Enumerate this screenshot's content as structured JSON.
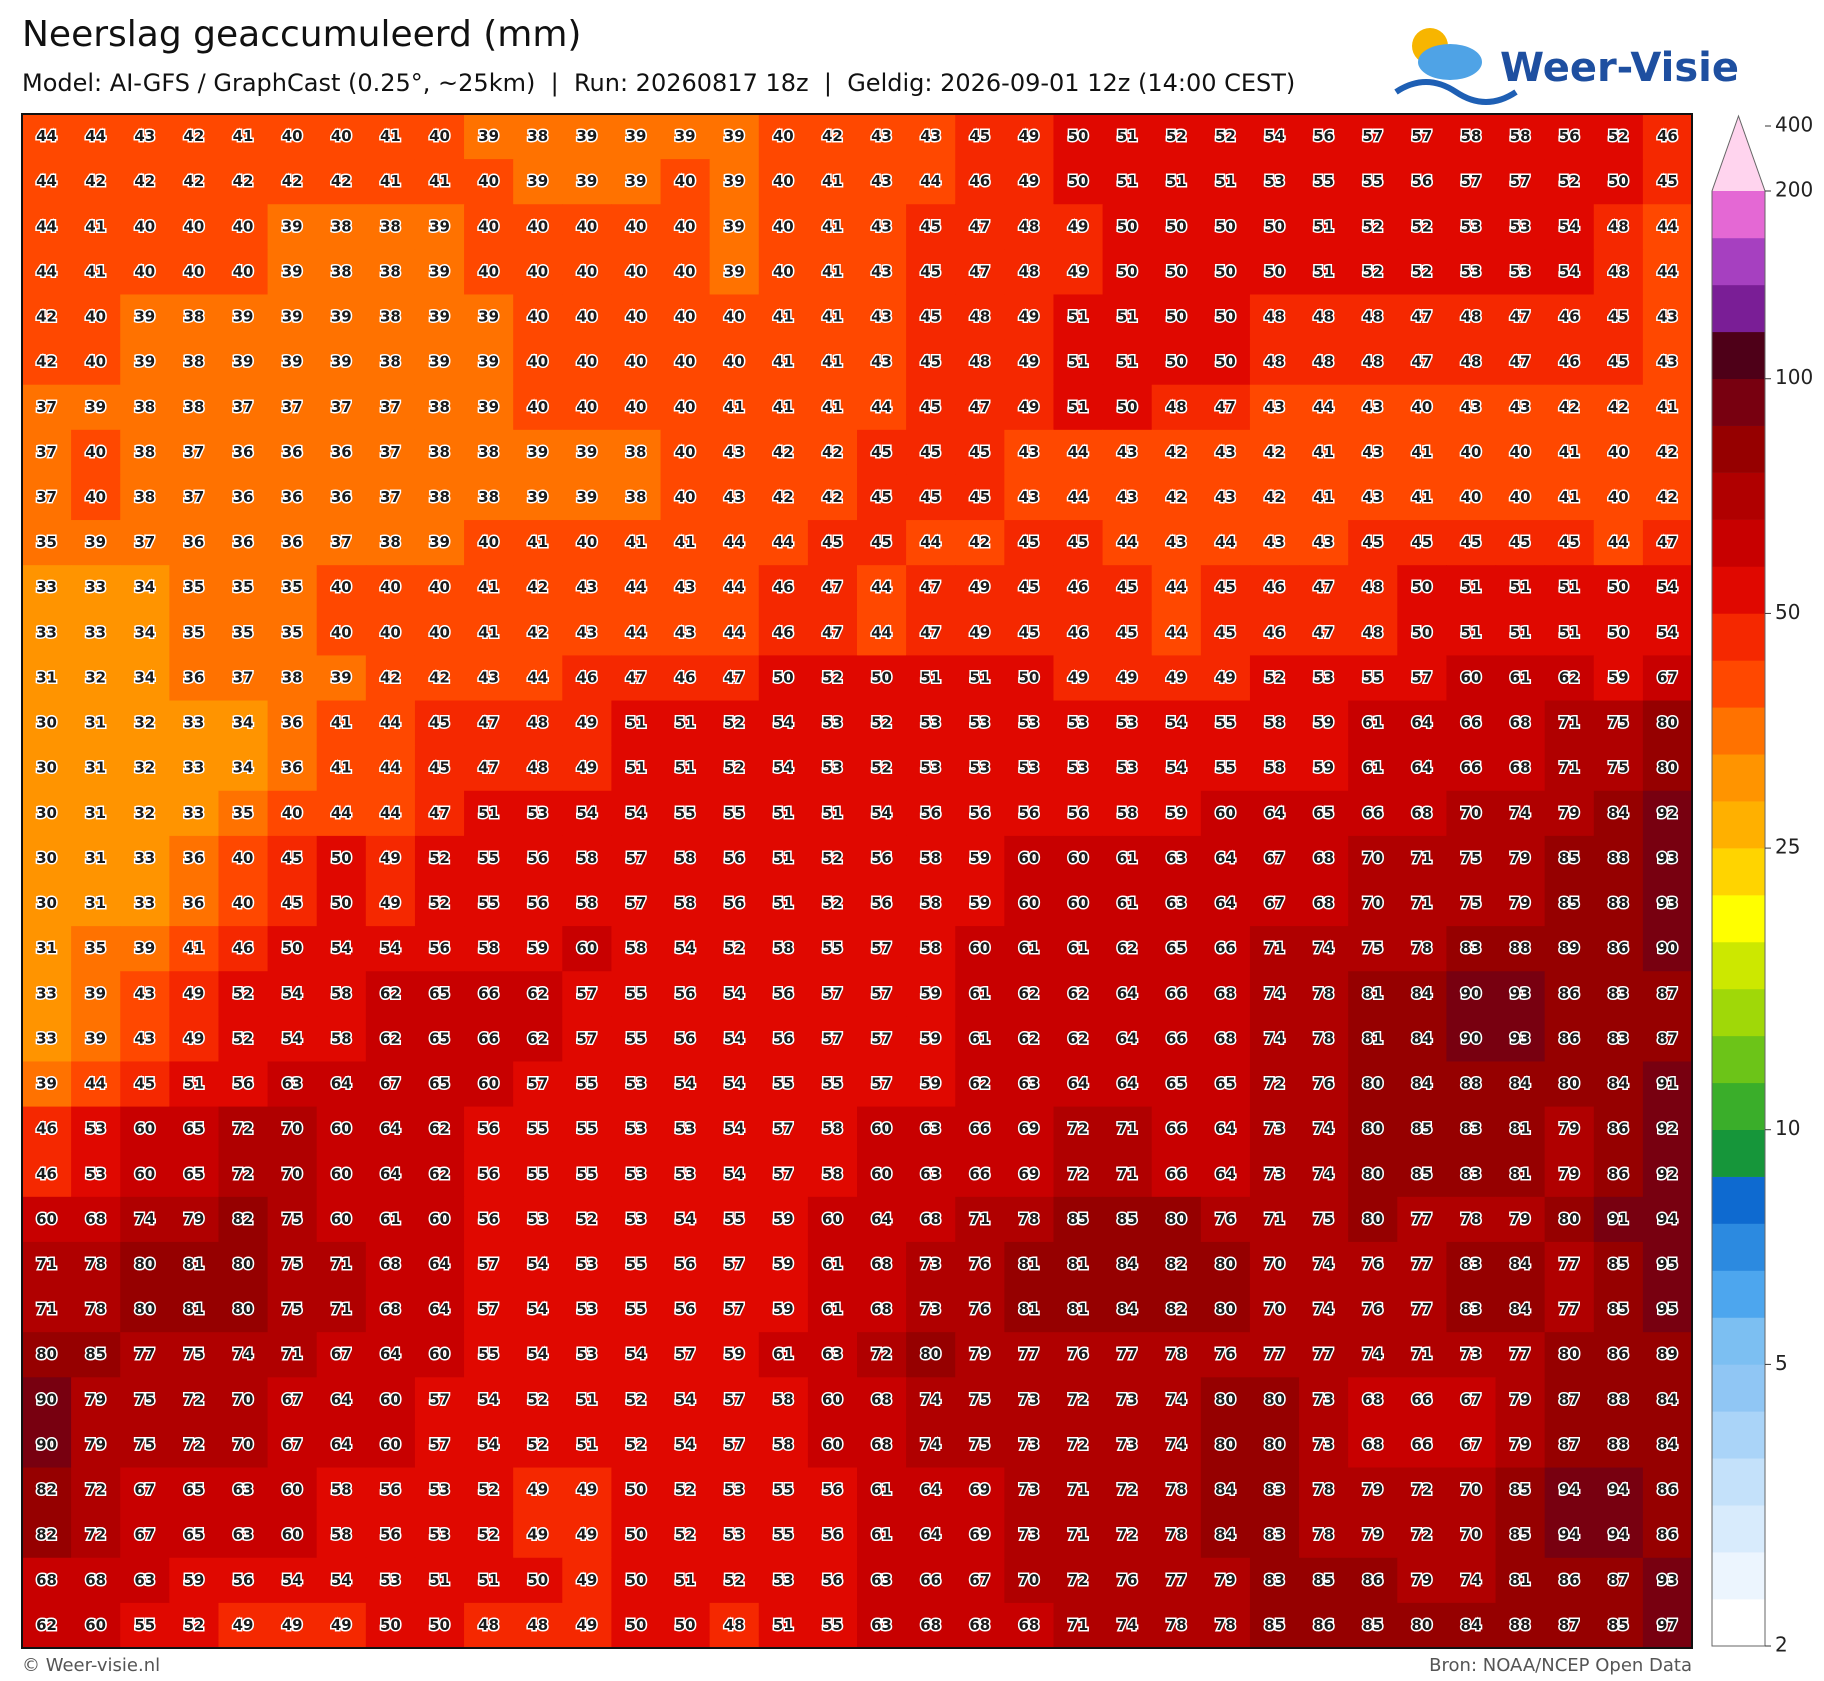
{
  "header": {
    "title": "Neerslag geaccumuleerd (mm)",
    "subtitle": "Model: AI-GFS / GraphCast (0.25°, ~25km)  |  Run: 20260817 18z  |  Geldig: 2026-09-01 12z (14:00 CEST)",
    "logo": "Weer-Visie"
  },
  "grid": {
    "rows": [
      [
        44,
        44,
        43,
        42,
        41,
        40,
        40,
        41,
        40,
        39,
        38,
        39,
        39,
        39,
        39,
        40,
        42,
        43,
        43,
        45,
        49,
        50,
        51,
        52,
        52,
        54,
        56,
        57,
        57,
        58,
        58,
        56,
        52,
        46
      ],
      [
        44,
        42,
        42,
        42,
        42,
        42,
        42,
        41,
        41,
        40,
        39,
        39,
        39,
        40,
        39,
        40,
        41,
        43,
        44,
        46,
        49,
        50,
        51,
        51,
        51,
        53,
        55,
        55,
        56,
        57,
        57,
        52,
        50,
        45
      ],
      [
        44,
        41,
        40,
        40,
        40,
        39,
        38,
        38,
        39,
        40,
        40,
        40,
        40,
        40,
        39,
        40,
        41,
        43,
        45,
        47,
        48,
        49,
        50,
        50,
        50,
        50,
        51,
        52,
        52,
        53,
        53,
        54,
        48,
        44
      ],
      [
        44,
        41,
        40,
        40,
        40,
        39,
        38,
        38,
        39,
        40,
        40,
        40,
        40,
        40,
        39,
        40,
        41,
        43,
        45,
        47,
        48,
        49,
        50,
        50,
        50,
        50,
        51,
        52,
        52,
        53,
        53,
        54,
        48,
        44
      ],
      [
        42,
        40,
        39,
        38,
        39,
        39,
        39,
        38,
        39,
        39,
        40,
        40,
        40,
        40,
        40,
        41,
        41,
        43,
        45,
        48,
        49,
        51,
        51,
        50,
        50,
        48,
        48,
        48,
        47,
        48,
        47,
        46,
        45,
        43
      ],
      [
        42,
        40,
        39,
        38,
        39,
        39,
        39,
        38,
        39,
        39,
        40,
        40,
        40,
        40,
        40,
        41,
        41,
        43,
        45,
        48,
        49,
        51,
        51,
        50,
        50,
        48,
        48,
        48,
        47,
        48,
        47,
        46,
        45,
        43
      ],
      [
        37,
        39,
        38,
        38,
        37,
        37,
        37,
        37,
        38,
        39,
        40,
        40,
        40,
        40,
        41,
        41,
        41,
        44,
        45,
        47,
        49,
        51,
        50,
        48,
        47,
        43,
        44,
        43,
        40,
        43,
        43,
        42,
        42,
        41
      ],
      [
        37,
        40,
        38,
        37,
        36,
        36,
        36,
        37,
        38,
        38,
        39,
        39,
        38,
        40,
        43,
        42,
        42,
        45,
        45,
        45,
        43,
        44,
        43,
        42,
        43,
        42,
        41,
        43,
        41,
        40,
        40,
        41,
        40,
        42
      ],
      [
        37,
        40,
        38,
        37,
        36,
        36,
        36,
        37,
        38,
        38,
        39,
        39,
        38,
        40,
        43,
        42,
        42,
        45,
        45,
        45,
        43,
        44,
        43,
        42,
        43,
        42,
        41,
        43,
        41,
        40,
        40,
        41,
        40,
        42
      ],
      [
        35,
        39,
        37,
        36,
        36,
        36,
        37,
        38,
        39,
        40,
        41,
        40,
        41,
        41,
        44,
        44,
        45,
        45,
        44,
        42,
        45,
        45,
        44,
        43,
        44,
        43,
        43,
        45,
        45,
        45,
        45,
        45,
        44,
        47
      ],
      [
        33,
        33,
        34,
        35,
        35,
        35,
        40,
        40,
        40,
        41,
        42,
        43,
        44,
        43,
        44,
        46,
        47,
        44,
        47,
        49,
        45,
        46,
        45,
        44,
        45,
        46,
        47,
        48,
        50,
        51,
        51,
        51,
        50,
        54
      ],
      [
        33,
        33,
        34,
        35,
        35,
        35,
        40,
        40,
        40,
        41,
        42,
        43,
        44,
        43,
        44,
        46,
        47,
        44,
        47,
        49,
        45,
        46,
        45,
        44,
        45,
        46,
        47,
        48,
        50,
        51,
        51,
        51,
        50,
        54
      ],
      [
        31,
        32,
        34,
        36,
        37,
        38,
        39,
        42,
        42,
        43,
        44,
        46,
        47,
        46,
        47,
        50,
        52,
        50,
        51,
        51,
        50,
        49,
        49,
        49,
        49,
        52,
        53,
        55,
        57,
        60,
        61,
        62,
        59,
        67
      ],
      [
        30,
        31,
        32,
        33,
        34,
        36,
        41,
        44,
        45,
        47,
        48,
        49,
        51,
        51,
        52,
        54,
        53,
        52,
        53,
        53,
        53,
        53,
        53,
        54,
        55,
        58,
        59,
        61,
        64,
        66,
        68,
        71,
        75,
        80
      ],
      [
        30,
        31,
        32,
        33,
        34,
        36,
        41,
        44,
        45,
        47,
        48,
        49,
        51,
        51,
        52,
        54,
        53,
        52,
        53,
        53,
        53,
        53,
        53,
        54,
        55,
        58,
        59,
        61,
        64,
        66,
        68,
        71,
        75,
        80
      ],
      [
        30,
        31,
        32,
        33,
        35,
        40,
        44,
        44,
        47,
        51,
        53,
        54,
        54,
        55,
        55,
        51,
        51,
        54,
        56,
        56,
        56,
        56,
        58,
        59,
        60,
        64,
        65,
        66,
        68,
        70,
        74,
        79,
        84,
        92
      ],
      [
        30,
        31,
        33,
        36,
        40,
        45,
        50,
        49,
        52,
        55,
        56,
        58,
        57,
        58,
        56,
        51,
        52,
        56,
        58,
        59,
        60,
        60,
        61,
        63,
        64,
        67,
        68,
        70,
        71,
        75,
        79,
        85,
        88,
        93
      ],
      [
        30,
        31,
        33,
        36,
        40,
        45,
        50,
        49,
        52,
        55,
        56,
        58,
        57,
        58,
        56,
        51,
        52,
        56,
        58,
        59,
        60,
        60,
        61,
        63,
        64,
        67,
        68,
        70,
        71,
        75,
        79,
        85,
        88,
        93
      ],
      [
        31,
        35,
        39,
        41,
        46,
        50,
        54,
        54,
        56,
        58,
        59,
        60,
        58,
        54,
        52,
        58,
        55,
        57,
        58,
        60,
        61,
        61,
        62,
        65,
        66,
        71,
        74,
        75,
        78,
        83,
        88,
        89,
        86,
        90
      ],
      [
        33,
        39,
        43,
        49,
        52,
        54,
        58,
        62,
        65,
        66,
        62,
        57,
        55,
        56,
        54,
        56,
        57,
        57,
        59,
        61,
        62,
        62,
        64,
        66,
        68,
        74,
        78,
        81,
        84,
        90,
        93,
        86,
        83,
        87
      ],
      [
        33,
        39,
        43,
        49,
        52,
        54,
        58,
        62,
        65,
        66,
        62,
        57,
        55,
        56,
        54,
        56,
        57,
        57,
        59,
        61,
        62,
        62,
        64,
        66,
        68,
        74,
        78,
        81,
        84,
        90,
        93,
        86,
        83,
        87
      ],
      [
        39,
        44,
        45,
        51,
        56,
        63,
        64,
        67,
        65,
        60,
        57,
        55,
        53,
        54,
        54,
        55,
        55,
        57,
        59,
        62,
        63,
        64,
        64,
        65,
        65,
        72,
        76,
        80,
        84,
        88,
        84,
        80,
        84,
        91
      ],
      [
        46,
        53,
        60,
        65,
        72,
        70,
        60,
        64,
        62,
        56,
        55,
        55,
        53,
        53,
        54,
        57,
        58,
        60,
        63,
        66,
        69,
        72,
        71,
        66,
        64,
        73,
        74,
        80,
        85,
        83,
        81,
        79,
        86,
        92
      ],
      [
        46,
        53,
        60,
        65,
        72,
        70,
        60,
        64,
        62,
        56,
        55,
        55,
        53,
        53,
        54,
        57,
        58,
        60,
        63,
        66,
        69,
        72,
        71,
        66,
        64,
        73,
        74,
        80,
        85,
        83,
        81,
        79,
        86,
        92
      ],
      [
        60,
        68,
        74,
        79,
        82,
        75,
        60,
        61,
        60,
        56,
        53,
        52,
        53,
        54,
        55,
        59,
        60,
        64,
        68,
        71,
        78,
        85,
        85,
        80,
        76,
        71,
        75,
        80,
        77,
        78,
        79,
        80,
        91,
        94
      ],
      [
        71,
        78,
        80,
        81,
        80,
        75,
        71,
        68,
        64,
        57,
        54,
        53,
        55,
        56,
        57,
        59,
        61,
        68,
        73,
        76,
        81,
        81,
        84,
        82,
        80,
        70,
        74,
        76,
        77,
        83,
        84,
        77,
        85,
        95
      ],
      [
        71,
        78,
        80,
        81,
        80,
        75,
        71,
        68,
        64,
        57,
        54,
        53,
        55,
        56,
        57,
        59,
        61,
        68,
        73,
        76,
        81,
        81,
        84,
        82,
        80,
        70,
        74,
        76,
        77,
        83,
        84,
        77,
        85,
        95
      ],
      [
        80,
        85,
        77,
        75,
        74,
        71,
        67,
        64,
        60,
        55,
        54,
        53,
        54,
        57,
        59,
        61,
        63,
        72,
        80,
        79,
        77,
        76,
        77,
        78,
        76,
        77,
        77,
        74,
        71,
        73,
        77,
        80,
        86,
        89
      ],
      [
        90,
        79,
        75,
        72,
        70,
        67,
        64,
        60,
        57,
        54,
        52,
        51,
        52,
        54,
        57,
        58,
        60,
        68,
        74,
        75,
        73,
        72,
        73,
        74,
        80,
        80,
        73,
        68,
        66,
        67,
        79,
        87,
        88,
        84
      ],
      [
        90,
        79,
        75,
        72,
        70,
        67,
        64,
        60,
        57,
        54,
        52,
        51,
        52,
        54,
        57,
        58,
        60,
        68,
        74,
        75,
        73,
        72,
        73,
        74,
        80,
        80,
        73,
        68,
        66,
        67,
        79,
        87,
        88,
        84
      ],
      [
        82,
        72,
        67,
        65,
        63,
        60,
        58,
        56,
        53,
        52,
        49,
        49,
        50,
        52,
        53,
        55,
        56,
        61,
        64,
        69,
        73,
        71,
        72,
        78,
        84,
        83,
        78,
        79,
        72,
        70,
        85,
        94,
        94,
        86
      ],
      [
        82,
        72,
        67,
        65,
        63,
        60,
        58,
        56,
        53,
        52,
        49,
        49,
        50,
        52,
        53,
        55,
        56,
        61,
        64,
        69,
        73,
        71,
        72,
        78,
        84,
        83,
        78,
        79,
        72,
        70,
        85,
        94,
        94,
        86
      ],
      [
        68,
        68,
        63,
        59,
        56,
        54,
        54,
        53,
        51,
        51,
        50,
        49,
        50,
        51,
        52,
        53,
        56,
        63,
        66,
        67,
        70,
        72,
        76,
        77,
        79,
        83,
        85,
        86,
        79,
        74,
        81,
        86,
        87,
        93
      ],
      [
        62,
        60,
        55,
        52,
        49,
        49,
        49,
        50,
        50,
        48,
        48,
        49,
        50,
        50,
        48,
        51,
        55,
        63,
        68,
        68,
        68,
        71,
        74,
        78,
        78,
        85,
        86,
        85,
        80,
        84,
        88,
        87,
        85,
        97
      ]
    ]
  },
  "colorbar": {
    "levels": [
      2,
      2.5,
      3,
      3.5,
      4,
      4.5,
      5,
      6,
      7,
      8,
      9,
      10,
      12.5,
      15,
      17.5,
      20,
      22.5,
      25,
      30,
      35,
      40,
      45,
      50,
      60,
      70,
      80,
      90,
      100,
      125,
      150,
      175,
      200
    ],
    "colors": [
      "#ffffff",
      "#ecf5fe",
      "#d8ebfc",
      "#c4e1fa",
      "#aad4f8",
      "#90c6f4",
      "#7cbff2",
      "#4da6ee",
      "#2c8ae0",
      "#0e6ad0",
      "#16963a",
      "#3aae2a",
      "#6cc418",
      "#a0d808",
      "#cce800",
      "#ffff00",
      "#ffd400",
      "#ffb000",
      "#ff9400",
      "#ff7200",
      "#ff4800",
      "#f52800",
      "#e00800",
      "#c80000",
      "#b00000",
      "#960000",
      "#780010",
      "#4e0018",
      "#7a1e96",
      "#a640c0",
      "#e468d4"
    ],
    "extend_color": "#ffd4ee",
    "ticks": [
      2,
      5,
      10,
      25,
      50,
      100,
      200,
      400
    ]
  },
  "footer": {
    "left": "© Weer-visie.nl",
    "right": "Bron: NOAA/NCEP Open Data"
  }
}
